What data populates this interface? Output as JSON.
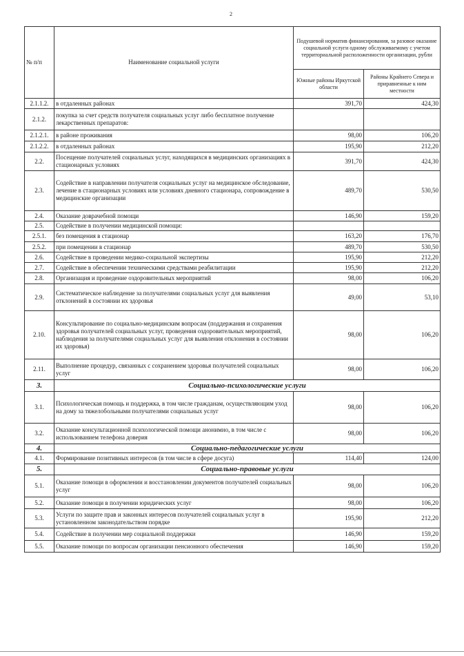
{
  "page_number": "2",
  "header": {
    "col_num": "№ п/п",
    "col_name": "Наименование социальной услуги",
    "col_norm": "Подушевой норматив финансирования, за разовое оказание социальной услуги одному обслуживаемому с учетом территориальной расположенности организации, рубли",
    "col_south": "Южные районы Иркутской области",
    "col_north": "Районы Крайнего Севера и приравненные к ним местности"
  },
  "rows": [
    {
      "num": "2.1.1.2.",
      "name": "в отдаленных районах",
      "south": "391,70",
      "north": "424,30"
    },
    {
      "num": "2.1.2.",
      "name": "покупка за счет средств получателя социальных услуг либо бесплатное получение лекарственных препаратов:",
      "south": "",
      "north": ""
    },
    {
      "num": "2.1.2.1.",
      "name": "в районе проживания",
      "south": "98,00",
      "north": "106,20"
    },
    {
      "num": "2.1.2.2.",
      "name": "в отдаленных районах",
      "south": "195,90",
      "north": "212,20"
    },
    {
      "num": "2.2.",
      "name": "Посещение получателей социальных услуг, находящихся в медицинских организациях в стационарных условиях",
      "south": "391,70",
      "north": "424,30"
    },
    {
      "num": "2.3.",
      "name": "Содействие в направлении получателя социальных услуг на медицинское обследование, лечение в стационарных условиях или условиях дневного стационара, сопровождение в медицинские организации",
      "south": "489,70",
      "north": "530,50"
    },
    {
      "num": "2.4.",
      "name": "Оказание доврачебной помощи",
      "south": "146,90",
      "north": "159,20"
    },
    {
      "num": "2.5.",
      "name": "Содействие в получении медицинской помощи:",
      "south": "",
      "north": ""
    },
    {
      "num": "2.5.1.",
      "name": "без помещения в стационар",
      "south": "163,20",
      "north": "176,70"
    },
    {
      "num": "2.5.2.",
      "name": "при помещении в стационар",
      "south": "489,70",
      "north": "530,50"
    },
    {
      "num": "2.6.",
      "name": "Содействие в проведении медико-социальной экспертизы",
      "south": "195,90",
      "north": "212,20"
    },
    {
      "num": "2.7.",
      "name": "Содействие в обеспечении техническими средствами реабилитации",
      "south": "195,90",
      "north": "212,20"
    },
    {
      "num": "2.8.",
      "name": "Организация и проведение оздоровительных мероприятий",
      "south": "98,00",
      "north": "106,20"
    },
    {
      "num": "2.9.",
      "name": "Систематическое наблюдение за получателями социальных услуг для выявления отклонений в состоянии их здоровья",
      "south": "49,00",
      "north": "53,10"
    },
    {
      "num": "2.10.",
      "name": "Консультирование по социально-медицинским вопросам (поддержания и сохранения здоровья получателей социальных услуг, проведения оздоровительных мероприятий, наблюдения за получателями социальных услуг для выявления отклонения в состоянии их здоровья)",
      "south": "98,00",
      "north": "106,20"
    },
    {
      "num": "2.11.",
      "name": "Выполнение процедур, связанных с сохранением здоровья получателей социальных услуг",
      "south": "98,00",
      "north": "106,20"
    },
    {
      "num": "3.",
      "section": "Социально-психологические услуги"
    },
    {
      "num": "3.1.",
      "name": "Психологическая помощь и поддержка, в том числе гражданам, осуществляющим уход на дому за тяжелобольными получателями социальных услуг",
      "south": "98,00",
      "north": "106,20"
    },
    {
      "num": "3.2.",
      "name": "Оказание консультационной психологической помощи анонимно, в том числе с использованием телефона доверия",
      "south": "98,00",
      "north": "106,20"
    },
    {
      "num": "4.",
      "section": "Социально-педагогические услуги"
    },
    {
      "num": "4.1.",
      "name": "Формирование позитивных интересов (в том числе в сфере досуга)",
      "south": "114,40",
      "north": "124,00"
    },
    {
      "num": "5.",
      "section": "Социально-правовые услуги"
    },
    {
      "num": "5.1.",
      "name": "Оказание помощи в оформлении и восстановлении документов получателей социальных услуг",
      "south": "98,00",
      "north": "106,20"
    },
    {
      "num": "5.2.",
      "name": "Оказание помощи в получении юридических услуг",
      "south": "98,00",
      "north": "106,20"
    },
    {
      "num": "5.3.",
      "name": "Услуги по защите прав и законных интересов получателей социальных услуг в установленном законодательством порядке",
      "south": "195,90",
      "north": "212,20"
    },
    {
      "num": "5.4.",
      "name": "Содействие в получении мер социальной поддержки",
      "south": "146,90",
      "north": "159,20"
    },
    {
      "num": "5.5.",
      "name": "Оказание помощи по вопросам организации пенсионного обеспечения",
      "south": "146,90",
      "north": "159,20"
    }
  ]
}
